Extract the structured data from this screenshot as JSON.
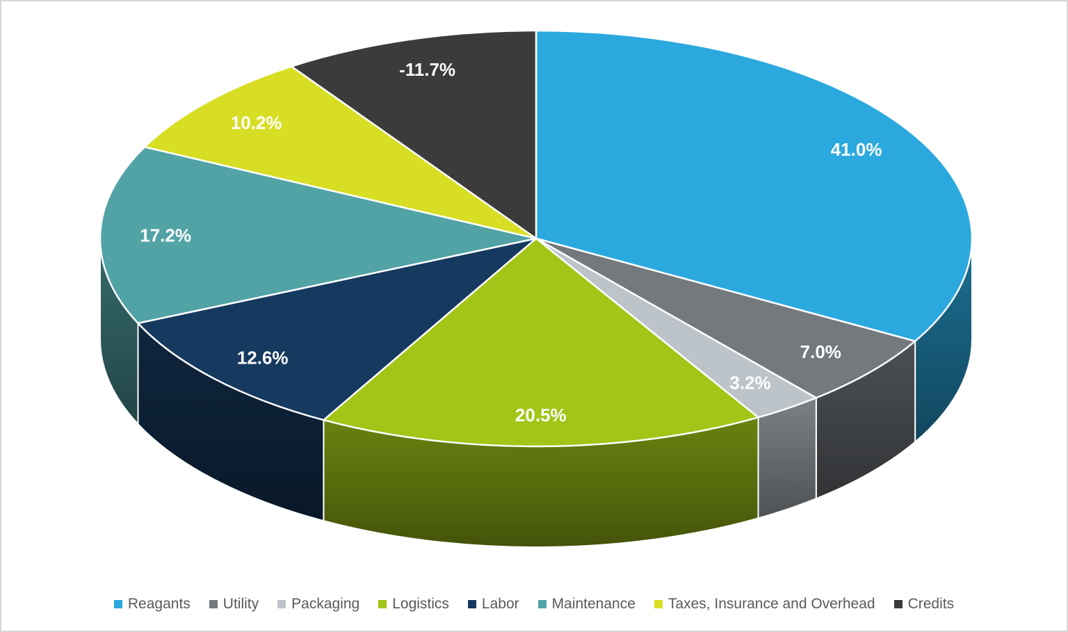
{
  "chart_data": {
    "type": "pie",
    "style": "3d",
    "title": "",
    "start_angle_deg": 0,
    "clockwise": true,
    "legend_position": "bottom",
    "data_labels": "percent",
    "note": "negative value (Credits) plotted by absolute magnitude",
    "slices": [
      {
        "label": "Reagants",
        "value": 41.0,
        "display": "41.0%",
        "color": "#2BA9DF",
        "label_color": "#FFFFFF"
      },
      {
        "label": "Utility",
        "value": 7.0,
        "display": "7.0%",
        "color": "#74797D",
        "label_color": "#FFFFFF"
      },
      {
        "label": "Packaging",
        "value": 3.2,
        "display": "3.2%",
        "color": "#BCC3C9",
        "label_color": "#FFFFFF"
      },
      {
        "label": "Logistics",
        "value": 20.5,
        "display": "20.5%",
        "color": "#A2C517",
        "label_color": "#FFFFFF"
      },
      {
        "label": "Labor",
        "value": 12.6,
        "display": "12.6%",
        "color": "#16395F",
        "label_color": "#FFFFFF"
      },
      {
        "label": "Maintenance",
        "value": 17.2,
        "display": "17.2%",
        "color": "#52A3A5",
        "label_color": "#FFFFFF"
      },
      {
        "label": "Taxes, Insurance and Overhead",
        "value": 10.2,
        "display": "10.2%",
        "color": "#D7DE23",
        "label_color": "#FFFFFF"
      },
      {
        "label": "Credits",
        "value": -11.7,
        "display": "-11.7%",
        "color": "#3B3B3B",
        "label_color": "#FFFFFF"
      }
    ]
  }
}
